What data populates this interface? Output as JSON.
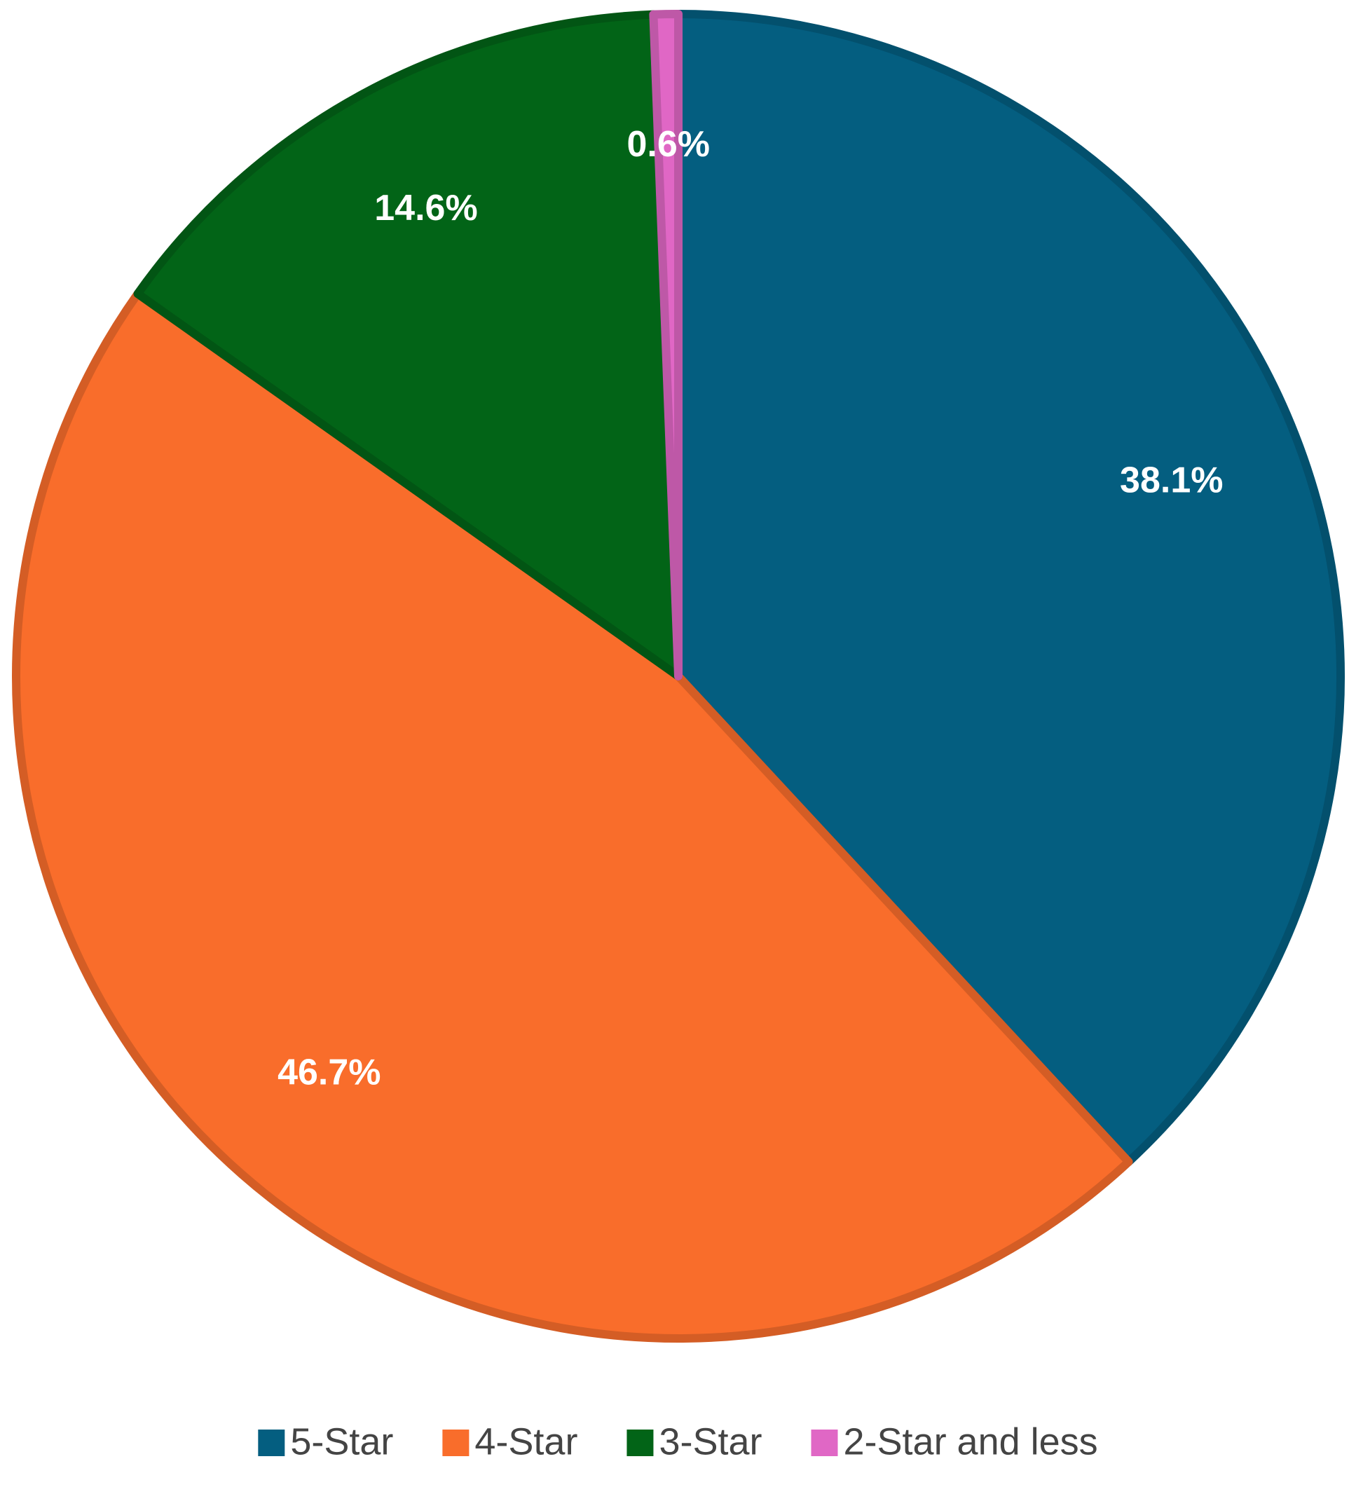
{
  "chart_data": {
    "type": "pie",
    "categories": [
      "5-Star",
      "4-Star",
      "3-Star",
      "2-Star and less"
    ],
    "values": [
      38.1,
      46.7,
      14.6,
      0.6
    ],
    "value_labels": [
      "38.1%",
      "46.7%",
      "14.6%",
      "0.6%"
    ],
    "colors": [
      "#045e80",
      "#f96d2b",
      "#026417",
      "#e067c5"
    ],
    "legend": "bottom"
  }
}
